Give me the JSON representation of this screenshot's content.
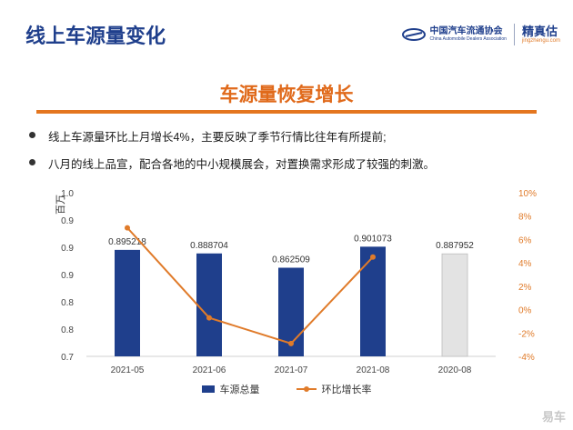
{
  "header": {
    "title": "线上车源量变化"
  },
  "logos": {
    "cada_cn": "中国汽车流通协会",
    "cada_en": "China Automobile Dealers Association",
    "jzg_cn": "精真估",
    "jzg_url": "jingzhengu.com"
  },
  "section": {
    "title": "车源量恢复增长"
  },
  "bullets": [
    "线上车源量环比上月增长4%，主要反映了季节行情比往年有所提前;",
    "八月的线上品宣，配合各地的中小规模展会，对置换需求形成了较强的刺激。"
  ],
  "watermark": "易车",
  "colors": {
    "bar": "#1f3f8c",
    "bar_last": "#e3e3e3",
    "line": "#e07b2a",
    "title_blue": "#1f3f8c",
    "accent": "#e06a1b"
  },
  "chart_data": {
    "type": "bar",
    "categories": [
      "2021-05",
      "2021-06",
      "2021-07",
      "2021-08",
      "2020-08"
    ],
    "series": [
      {
        "name": "车源总量",
        "type": "bar",
        "axis": "left",
        "values": [
          0.895218,
          0.888704,
          0.862509,
          0.901073,
          0.887952
        ]
      },
      {
        "name": "环比增长率",
        "type": "line",
        "axis": "right",
        "values": [
          7.0,
          -0.7,
          -2.9,
          4.5,
          null
        ]
      }
    ],
    "data_labels": [
      "0.895218",
      "0.888704",
      "0.862509",
      "0.901073",
      "0.887952"
    ],
    "ylabel": "百万",
    "ylim": [
      0.7,
      1.0
    ],
    "yticks": [
      "1.0",
      "0.9",
      "0.9",
      "0.9",
      "0.8",
      "0.8",
      "0.7"
    ],
    "y2lim": [
      -4,
      10
    ],
    "y2ticks": [
      "10%",
      "8%",
      "6%",
      "4%",
      "2%",
      "0%",
      "-2%",
      "-4%"
    ],
    "legend_position": "bottom",
    "grid": false
  }
}
